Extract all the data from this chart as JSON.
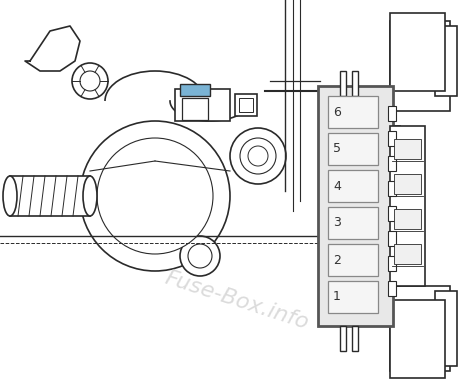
{
  "bg_color": "#ffffff",
  "engine_lines_color": "#2a2a2a",
  "fuse_box_bg": "#e8e8e8",
  "fuse_box_border": "#555555",
  "fuse_slot_bg": "#f5f5f5",
  "fuse_slot_border": "#888888",
  "blue_fuse_color": "#7ab3d4",
  "watermark_color": "#cccccc",
  "watermark_text": "Fuse-Box.info",
  "fuse_numbers": [
    "6",
    "5",
    "4",
    "3",
    "2",
    "1"
  ],
  "fig_width": 4.74,
  "fig_height": 3.91,
  "dpi": 100
}
